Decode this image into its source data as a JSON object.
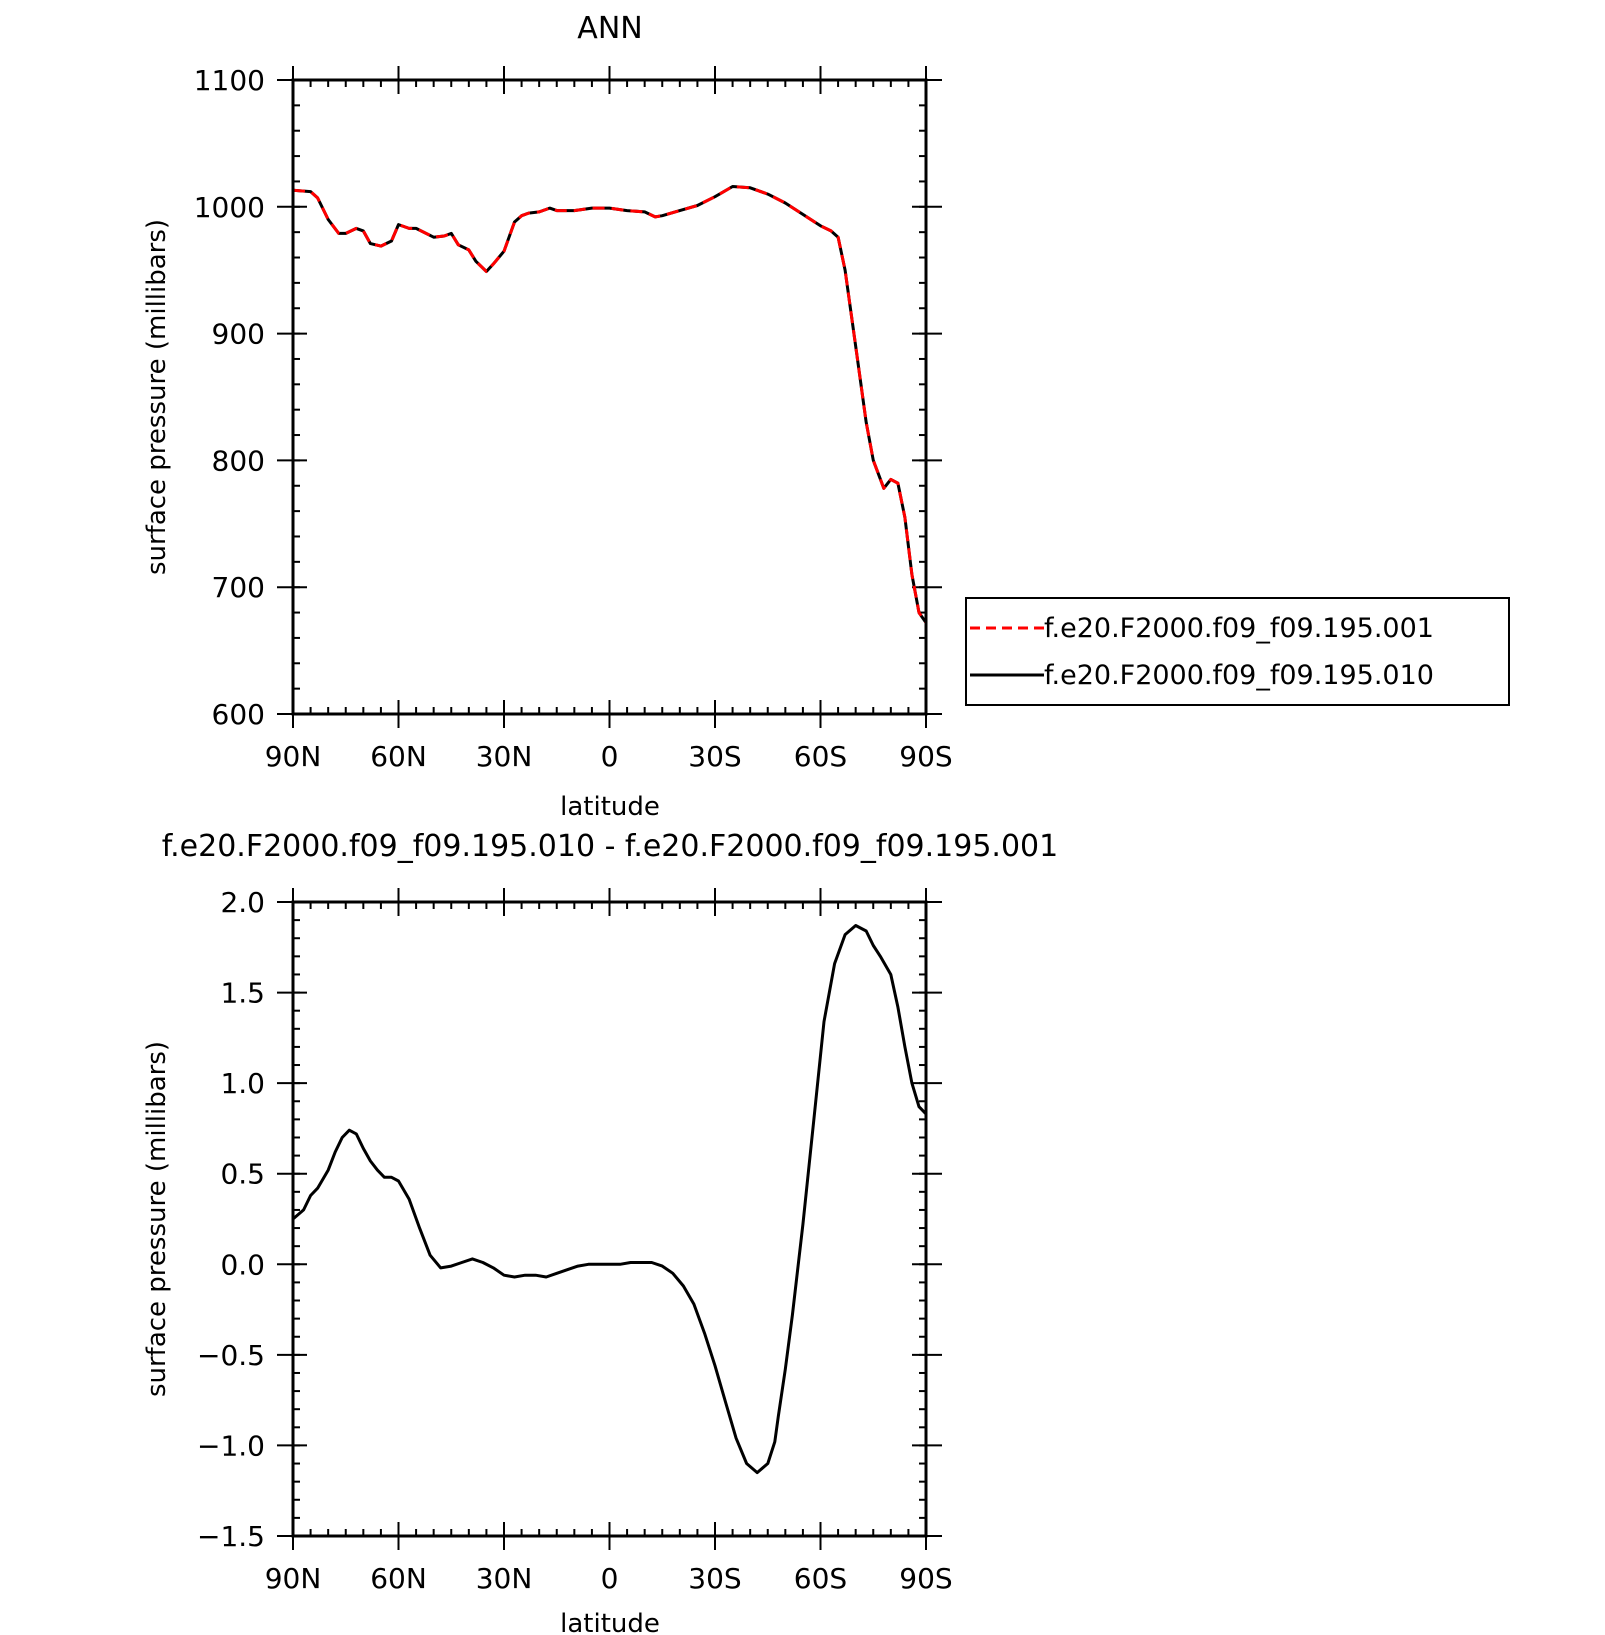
{
  "chart_data": [
    {
      "type": "line",
      "title": "ANN",
      "xlabel": "latitude",
      "ylabel": "surface pressure (millibars)",
      "xlim": [
        90,
        -90
      ],
      "ylim": [
        600,
        1100
      ],
      "x_ticks": [
        {
          "value": 90,
          "label": "90N"
        },
        {
          "value": 60,
          "label": "60N"
        },
        {
          "value": 30,
          "label": "30N"
        },
        {
          "value": 0,
          "label": "0"
        },
        {
          "value": -30,
          "label": "30S"
        },
        {
          "value": -60,
          "label": "60S"
        },
        {
          "value": -90,
          "label": "90S"
        }
      ],
      "y_ticks": [
        {
          "value": 1100,
          "label": "1100"
        },
        {
          "value": 1000,
          "label": "1000"
        },
        {
          "value": 900,
          "label": "900"
        },
        {
          "value": 800,
          "label": "800"
        },
        {
          "value": 700,
          "label": "700"
        },
        {
          "value": 600,
          "label": "600"
        }
      ],
      "legend_position": "right",
      "x": [
        90,
        85,
        83,
        80,
        77,
        75,
        72,
        70,
        68,
        65,
        62,
        60,
        57,
        55,
        50,
        47,
        45,
        43,
        40,
        38,
        35,
        33,
        30,
        27,
        25,
        23,
        20,
        17,
        15,
        10,
        5,
        0,
        -5,
        -10,
        -13,
        -15,
        -20,
        -25,
        -30,
        -35,
        -40,
        -45,
        -50,
        -55,
        -60,
        -63,
        -65,
        -67,
        -70,
        -73,
        -75,
        -78,
        -80,
        -82,
        -84,
        -86,
        -88,
        -90
      ],
      "series": [
        {
          "name": "f.e20.F2000.f09_f09.195.001",
          "color": "#ff0000",
          "dash": "dashed",
          "values": [
            1013,
            1012,
            1007,
            990,
            979,
            979,
            983,
            981,
            971,
            969,
            973,
            986,
            983,
            983,
            976,
            977,
            979,
            970,
            966,
            957,
            949,
            955,
            965,
            988,
            993,
            995,
            996,
            999,
            997,
            997,
            999,
            999,
            997,
            996,
            992,
            993,
            997,
            1001,
            1008,
            1016,
            1015,
            1010,
            1003,
            994,
            985,
            981,
            976,
            950,
            890,
            830,
            800,
            778,
            785,
            782,
            755,
            710,
            680,
            672
          ]
        },
        {
          "name": "f.e20.F2000.f09_f09.195.010",
          "color": "#000000",
          "dash": "solid",
          "values": [
            1013,
            1012,
            1007,
            990,
            979,
            979,
            983,
            981,
            971,
            969,
            973,
            986,
            983,
            983,
            976,
            977,
            979,
            970,
            966,
            957,
            949,
            955,
            965,
            988,
            993,
            995,
            996,
            999,
            997,
            997,
            999,
            999,
            997,
            996,
            992,
            993,
            997,
            1001,
            1008,
            1016,
            1015,
            1010,
            1003,
            994,
            985,
            981,
            976,
            950,
            890,
            830,
            800,
            778,
            785,
            782,
            755,
            710,
            680,
            672
          ]
        }
      ]
    },
    {
      "type": "line",
      "title": "f.e20.F2000.f09_f09.195.010 - f.e20.F2000.f09_f09.195.001",
      "xlabel": "latitude",
      "ylabel": "surface pressure (millibars)",
      "xlim": [
        90,
        -90
      ],
      "ylim": [
        -1.5,
        2.0
      ],
      "x_ticks": [
        {
          "value": 90,
          "label": "90N"
        },
        {
          "value": 60,
          "label": "60N"
        },
        {
          "value": 30,
          "label": "30N"
        },
        {
          "value": 0,
          "label": "0"
        },
        {
          "value": -30,
          "label": "30S"
        },
        {
          "value": -60,
          "label": "60S"
        },
        {
          "value": -90,
          "label": "90S"
        }
      ],
      "y_ticks": [
        {
          "value": 2.0,
          "label": "2.0"
        },
        {
          "value": 1.5,
          "label": "1.5"
        },
        {
          "value": 1.0,
          "label": "1.0"
        },
        {
          "value": 0.5,
          "label": "0.5"
        },
        {
          "value": 0.0,
          "label": "0.0"
        },
        {
          "value": -0.5,
          "label": "−0.5"
        },
        {
          "value": -1.0,
          "label": "−1.0"
        },
        {
          "value": -1.5,
          "label": "−1.5"
        }
      ],
      "x": [
        90,
        87,
        85,
        83,
        80,
        78,
        76,
        74,
        72,
        70,
        68,
        66,
        64,
        62,
        60,
        57,
        54,
        51,
        48,
        45,
        42,
        39,
        36,
        33,
        30,
        27,
        24,
        21,
        18,
        15,
        12,
        9,
        6,
        3,
        0,
        -3,
        -6,
        -9,
        -12,
        -15,
        -18,
        -21,
        -24,
        -27,
        -30,
        -33,
        -36,
        -39,
        -42,
        -45,
        -47,
        -48,
        -50,
        -52,
        -55,
        -58,
        -61,
        -64,
        -67,
        -70,
        -73,
        -75,
        -77,
        -80,
        -82,
        -84,
        -86,
        -88,
        -90
      ],
      "series": [
        {
          "color": "#000000",
          "values": [
            0.25,
            0.3,
            0.38,
            0.42,
            0.52,
            0.62,
            0.7,
            0.74,
            0.72,
            0.64,
            0.57,
            0.52,
            0.48,
            0.48,
            0.46,
            0.36,
            0.2,
            0.05,
            -0.02,
            -0.01,
            0.01,
            0.03,
            0.01,
            -0.02,
            -0.06,
            -0.07,
            -0.06,
            -0.06,
            -0.07,
            -0.05,
            -0.03,
            -0.01,
            0.0,
            0.0,
            0.0,
            0.0,
            0.01,
            0.01,
            0.01,
            -0.01,
            -0.05,
            -0.12,
            -0.22,
            -0.38,
            -0.56,
            -0.76,
            -0.96,
            -1.1,
            -1.15,
            -1.1,
            -0.98,
            -0.84,
            -0.58,
            -0.28,
            0.22,
            0.78,
            1.34,
            1.66,
            1.82,
            1.87,
            1.84,
            1.76,
            1.7,
            1.6,
            1.42,
            1.2,
            1.0,
            0.87,
            0.83
          ]
        }
      ]
    }
  ],
  "legend": [
    {
      "label": "f.e20.F2000.f09_f09.195.001",
      "color": "#ff0000",
      "dash": "dashed"
    },
    {
      "label": "f.e20.F2000.f09_f09.195.010",
      "color": "#000000",
      "dash": "solid"
    }
  ]
}
